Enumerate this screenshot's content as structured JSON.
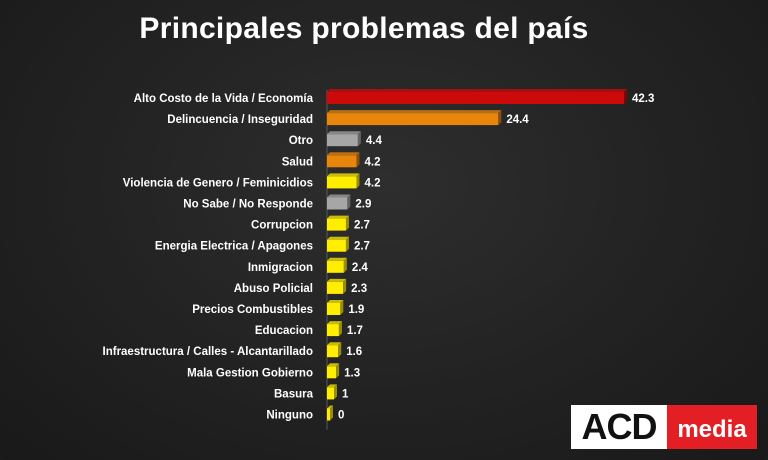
{
  "title": "Principales problemas del país",
  "logo": {
    "left_text": "ACD",
    "right_text": "media"
  },
  "chart_data": {
    "type": "bar",
    "orientation": "horizontal",
    "title": "Principales problemas del país",
    "categories": [
      "Alto Costo de la Vida / Economía",
      "Delincuencia / Inseguridad",
      "Otro",
      "Salud",
      "Violencia de Genero / Feminicidios",
      "No Sabe / No Responde",
      "Corrupcion",
      "Energia Electrica / Apagones",
      "Inmigracion",
      "Abuso Policial",
      "Precios Combustibles",
      "Educacion",
      "Infraestructura / Calles - Alcantarillado",
      "Mala Gestion Gobierno",
      "Basura",
      "Ninguno"
    ],
    "values": [
      42.3,
      24.4,
      4.4,
      4.2,
      4.2,
      2.9,
      2.7,
      2.7,
      2.4,
      2.3,
      1.9,
      1.7,
      1.6,
      1.3,
      1,
      0
    ],
    "value_labels": [
      "42.3",
      "24.4",
      "4.4",
      "4.2",
      "4.2",
      "2.9",
      "2.7",
      "2.7",
      "2.4",
      "2.3",
      "1.9",
      "1.7",
      "1.6",
      "1.3",
      "1",
      "0"
    ],
    "bar_colors": [
      "#cc0a0a",
      "#e8860c",
      "#a6a6a6",
      "#e8860c",
      "#ffee00",
      "#a6a6a6",
      "#ffee00",
      "#ffee00",
      "#ffee00",
      "#ffee00",
      "#ffee00",
      "#ffee00",
      "#ffee00",
      "#ffee00",
      "#ffee00",
      "#ffee00"
    ],
    "xlim": [
      0,
      42.3
    ],
    "grid": false,
    "legend": "none"
  }
}
